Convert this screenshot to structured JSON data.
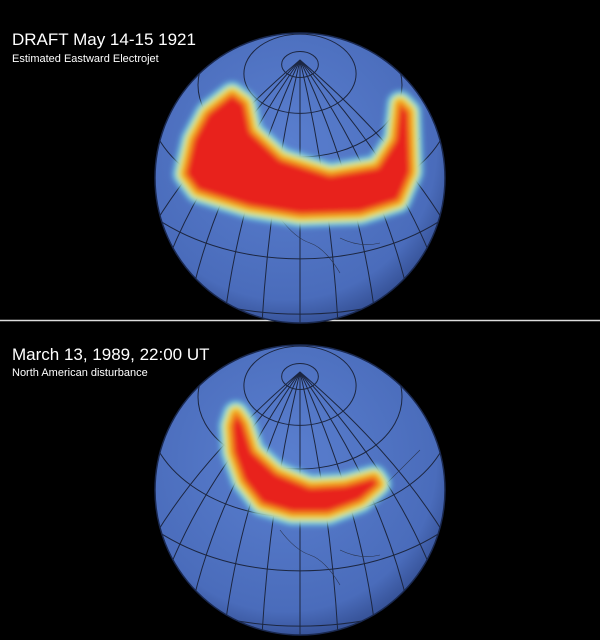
{
  "panels": [
    {
      "title": "DRAFT May 14-15 1921",
      "subtitle": "Estimated Eastward Electrojet"
    },
    {
      "title": "March 13, 1989, 22:00 UT",
      "subtitle": "North American disturbance"
    }
  ]
}
